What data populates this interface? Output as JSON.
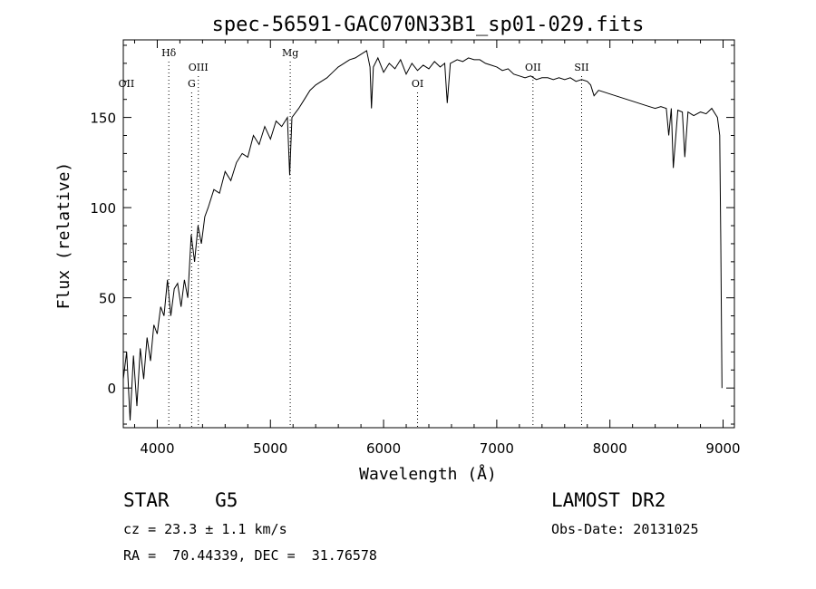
{
  "chart_data": {
    "type": "line",
    "title": "spec-56591-GAC070N33B1_sp01-029.fits",
    "xlabel": "Wavelength (Å)",
    "ylabel": "Flux (relative)",
    "xlim": [
      3700,
      9100
    ],
    "ylim": [
      -22,
      193
    ],
    "x_ticks": [
      4000,
      5000,
      6000,
      7000,
      8000,
      9000
    ],
    "y_ticks": [
      0,
      50,
      100,
      150
    ],
    "grid": false,
    "line_color": "#000000",
    "series": [
      {
        "x": [
          3700,
          3730,
          3760,
          3790,
          3820,
          3850,
          3880,
          3910,
          3940,
          3970,
          4000,
          4030,
          4060,
          4090,
          4120,
          4150,
          4180,
          4210,
          4240,
          4270,
          4300,
          4330,
          4360,
          4390,
          4420,
          4450,
          4500,
          4550,
          4600,
          4650,
          4700,
          4750,
          4800,
          4850,
          4900,
          4950,
          5000,
          5050,
          5100,
          5150,
          5170,
          5190,
          5250,
          5300,
          5350,
          5400,
          5450,
          5500,
          5550,
          5600,
          5650,
          5700,
          5750,
          5800,
          5850,
          5880,
          5893,
          5910,
          5950,
          6000,
          6050,
          6100,
          6150,
          6200,
          6250,
          6300,
          6350,
          6400,
          6450,
          6500,
          6540,
          6563,
          6590,
          6650,
          6700,
          6750,
          6800,
          6850,
          6900,
          6950,
          7000,
          7050,
          7100,
          7150,
          7200,
          7250,
          7300,
          7350,
          7400,
          7450,
          7500,
          7550,
          7600,
          7650,
          7700,
          7750,
          7800,
          7830,
          7860,
          7900,
          7950,
          8000,
          8050,
          8100,
          8150,
          8200,
          8250,
          8300,
          8350,
          8400,
          8450,
          8498,
          8520,
          8542,
          8560,
          8600,
          8640,
          8662,
          8690,
          8740,
          8800,
          8850,
          8900,
          8950,
          8970,
          8980,
          8990
        ],
        "y": [
          5,
          20,
          -18,
          18,
          -10,
          22,
          5,
          28,
          15,
          35,
          30,
          45,
          40,
          60,
          40,
          55,
          58,
          45,
          60,
          50,
          85,
          70,
          90,
          80,
          95,
          100,
          110,
          108,
          120,
          115,
          125,
          130,
          128,
          140,
          135,
          145,
          138,
          148,
          145,
          150,
          118,
          150,
          155,
          160,
          165,
          168,
          170,
          172,
          175,
          178,
          180,
          182,
          183,
          185,
          187,
          178,
          155,
          178,
          183,
          175,
          180,
          177,
          182,
          174,
          180,
          176,
          179,
          177,
          181,
          178,
          180,
          158,
          180,
          182,
          181,
          183,
          182,
          182,
          180,
          179,
          178,
          176,
          177,
          174,
          173,
          172,
          173,
          171,
          172,
          172,
          171,
          172,
          171,
          172,
          170,
          171,
          170,
          168,
          162,
          165,
          164,
          163,
          162,
          161,
          160,
          159,
          158,
          157,
          156,
          155,
          156,
          155,
          140,
          155,
          122,
          154,
          153,
          128,
          153,
          151,
          153,
          152,
          155,
          150,
          140,
          80,
          0
        ]
      }
    ],
    "spectral_lines": [
      {
        "label": "OII",
        "x": 3727,
        "row": 3,
        "guide": false
      },
      {
        "label": "Hδ",
        "x": 4102,
        "row": 1,
        "guide": true
      },
      {
        "label": "OIII",
        "x": 4363,
        "row": 2,
        "guide": true
      },
      {
        "label": "G",
        "x": 4304,
        "row": 3,
        "guide": true
      },
      {
        "label": "Mg",
        "x": 5175,
        "row": 1,
        "guide": true
      },
      {
        "label": "OI",
        "x": 6300,
        "row": 3,
        "guide": true
      },
      {
        "label": "OII",
        "x": 7320,
        "row": 2,
        "guide": true
      },
      {
        "label": "SII",
        "x": 7750,
        "row": 2,
        "guide": true
      }
    ]
  },
  "info": {
    "class": "STAR    G5",
    "survey": "LAMOST DR2",
    "cz": "cz = 23.3 ± 1.1 km/s",
    "obs_date": "Obs-Date: 20131025",
    "coords": "RA =  70.44339, DEC =  31.76578"
  }
}
